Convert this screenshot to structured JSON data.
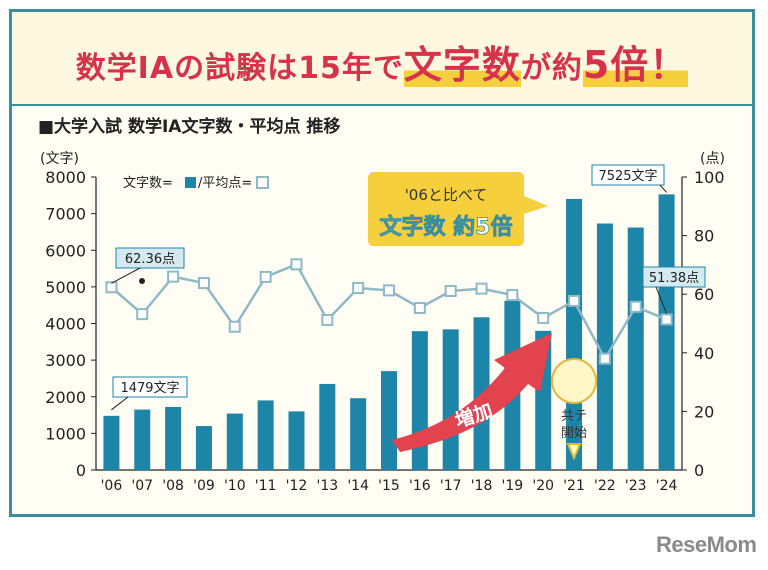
{
  "headline": {
    "part1": "数学ⅠAの試験は15年で",
    "part2": "文字数",
    "part3": "が約",
    "part4": "5倍！"
  },
  "subtitle": "■大学入試 数学ⅠA文字数・平均点 推移",
  "brand": "ReseMom",
  "chart_data": {
    "type": "bar+line",
    "categories": [
      "'06",
      "'07",
      "'08",
      "'09",
      "'10",
      "'11",
      "'12",
      "'13",
      "'14",
      "'15",
      "'16",
      "'17",
      "'18",
      "'19",
      "'20",
      "'21",
      "'22",
      "'23",
      "'24"
    ],
    "series": [
      {
        "axis": "left",
        "type": "bar",
        "values": [
          1479,
          1650,
          1720,
          1200,
          1540,
          1900,
          1600,
          2350,
          1960,
          2700,
          3790,
          3840,
          4170,
          4620,
          3800,
          7400,
          6730,
          6620,
          7525
        ]
      },
      {
        "axis": "right",
        "type": "line",
        "values": [
          62.36,
          53.2,
          66.0,
          63.8,
          48.9,
          65.9,
          70.2,
          51.2,
          62.1,
          61.3,
          55.3,
          61.1,
          61.9,
          59.7,
          51.9,
          57.7,
          38.0,
          55.7,
          51.38
        ]
      }
    ],
    "y_left": {
      "unit": "(文字)",
      "ylim": [
        0,
        8000
      ],
      "ticks": [
        0,
        1000,
        2000,
        3000,
        4000,
        5000,
        6000,
        7000,
        8000
      ]
    },
    "y_right": {
      "unit": "(点)",
      "ylim": [
        0,
        100
      ],
      "ticks": [
        0,
        20,
        40,
        60,
        80,
        100
      ]
    },
    "legend": {
      "text1": "文字数=",
      "text2": "/平均点=",
      "placement": "top-left"
    },
    "annotations": {
      "first_score": "62.36点",
      "first_count": "1479文字",
      "last_count": "7525文字",
      "last_score": "51.38点",
      "callout_line1": "'06と比べて",
      "callout_line2": "文字数 約5倍",
      "arrow_label": "増加",
      "bubble_line1": "共テ",
      "bubble_line2": "開始"
    },
    "colors": {
      "bar": "#1c85a8",
      "line": "#8fb9c6",
      "marker_fill": "#ffffff",
      "callout_bg": "#f5d03c",
      "arrow": "#e3424f",
      "frame": "#3b8da0"
    },
    "grid": false
  }
}
